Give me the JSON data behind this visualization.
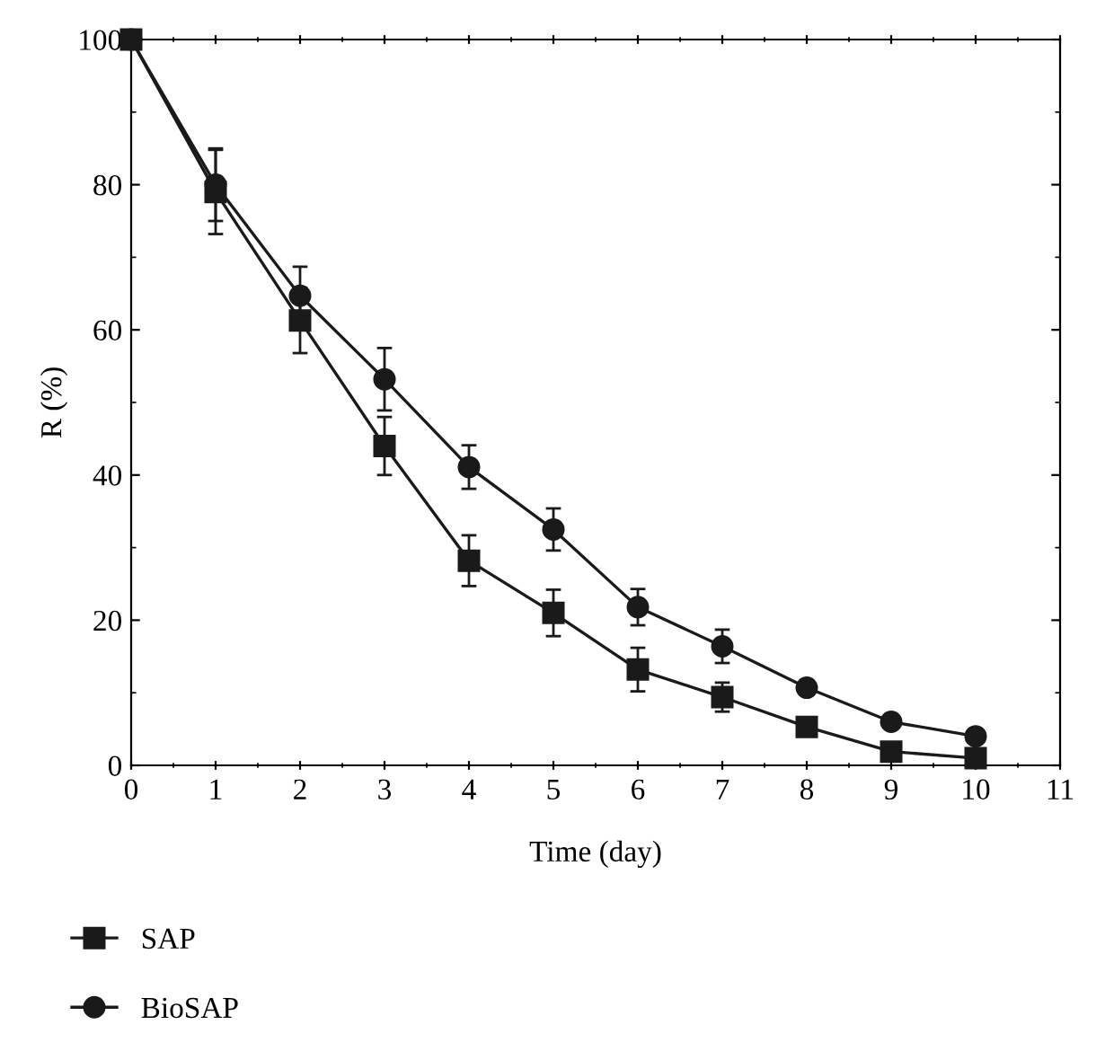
{
  "chart_data": {
    "type": "line",
    "xlabel": "Time (day)",
    "ylabel": "R (%)",
    "x": [
      0,
      1,
      2,
      3,
      4,
      5,
      6,
      7,
      8,
      9,
      10
    ],
    "series": [
      {
        "name": "SAP",
        "color": "#1a1a1a",
        "marker": "square",
        "values": [
          100,
          79,
          61.3,
          44,
          28.2,
          21,
          13.2,
          9.4,
          5.3,
          1.9,
          1.0
        ],
        "errors": [
          null,
          5.8,
          4.5,
          4,
          3.5,
          3.2,
          3,
          2,
          null,
          null,
          null
        ]
      },
      {
        "name": "BioSAP",
        "color": "#1a1a1a",
        "marker": "circle",
        "values": [
          100,
          80,
          64.7,
          53.2,
          41.1,
          32.5,
          21.8,
          16.4,
          10.7,
          6,
          4
        ],
        "errors": [
          null,
          5,
          4,
          4.3,
          3,
          2.9,
          2.5,
          2.3,
          null,
          null,
          null
        ]
      }
    ],
    "xlim": [
      0,
      11
    ],
    "xticks": [
      0,
      1,
      2,
      3,
      4,
      5,
      6,
      7,
      8,
      9,
      10,
      11
    ],
    "ylim": [
      0,
      100
    ],
    "yticks": [
      0,
      20,
      40,
      60,
      80,
      100
    ],
    "grid": false,
    "legend": "bottom left",
    "line_style": "solid"
  }
}
